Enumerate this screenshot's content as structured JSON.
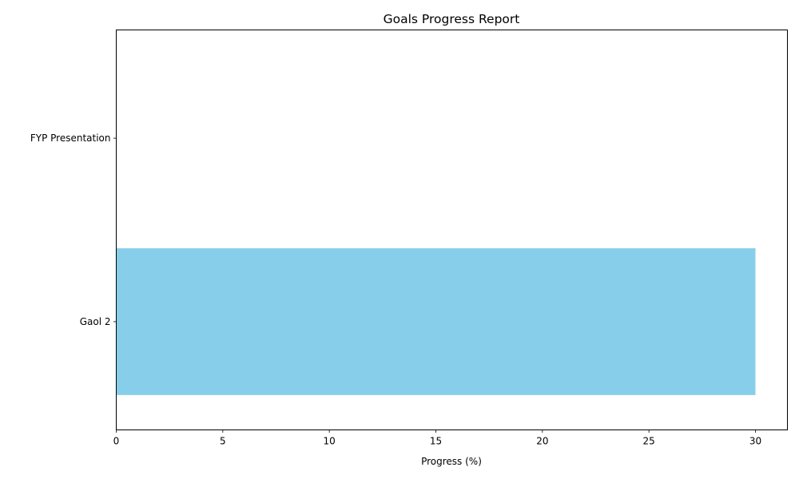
{
  "chart_data": {
    "type": "bar",
    "orientation": "horizontal",
    "title": "Goals Progress Report",
    "xlabel": "Progress (%)",
    "ylabel": "",
    "categories": [
      "Gaol 2",
      "FYP Presentation"
    ],
    "values": [
      30,
      0
    ],
    "xlim": [
      0,
      31.5
    ],
    "xticks": [
      0,
      5,
      10,
      15,
      20,
      25,
      30
    ],
    "grid": false,
    "legend": "none",
    "bar_color": "#87CEEB"
  }
}
